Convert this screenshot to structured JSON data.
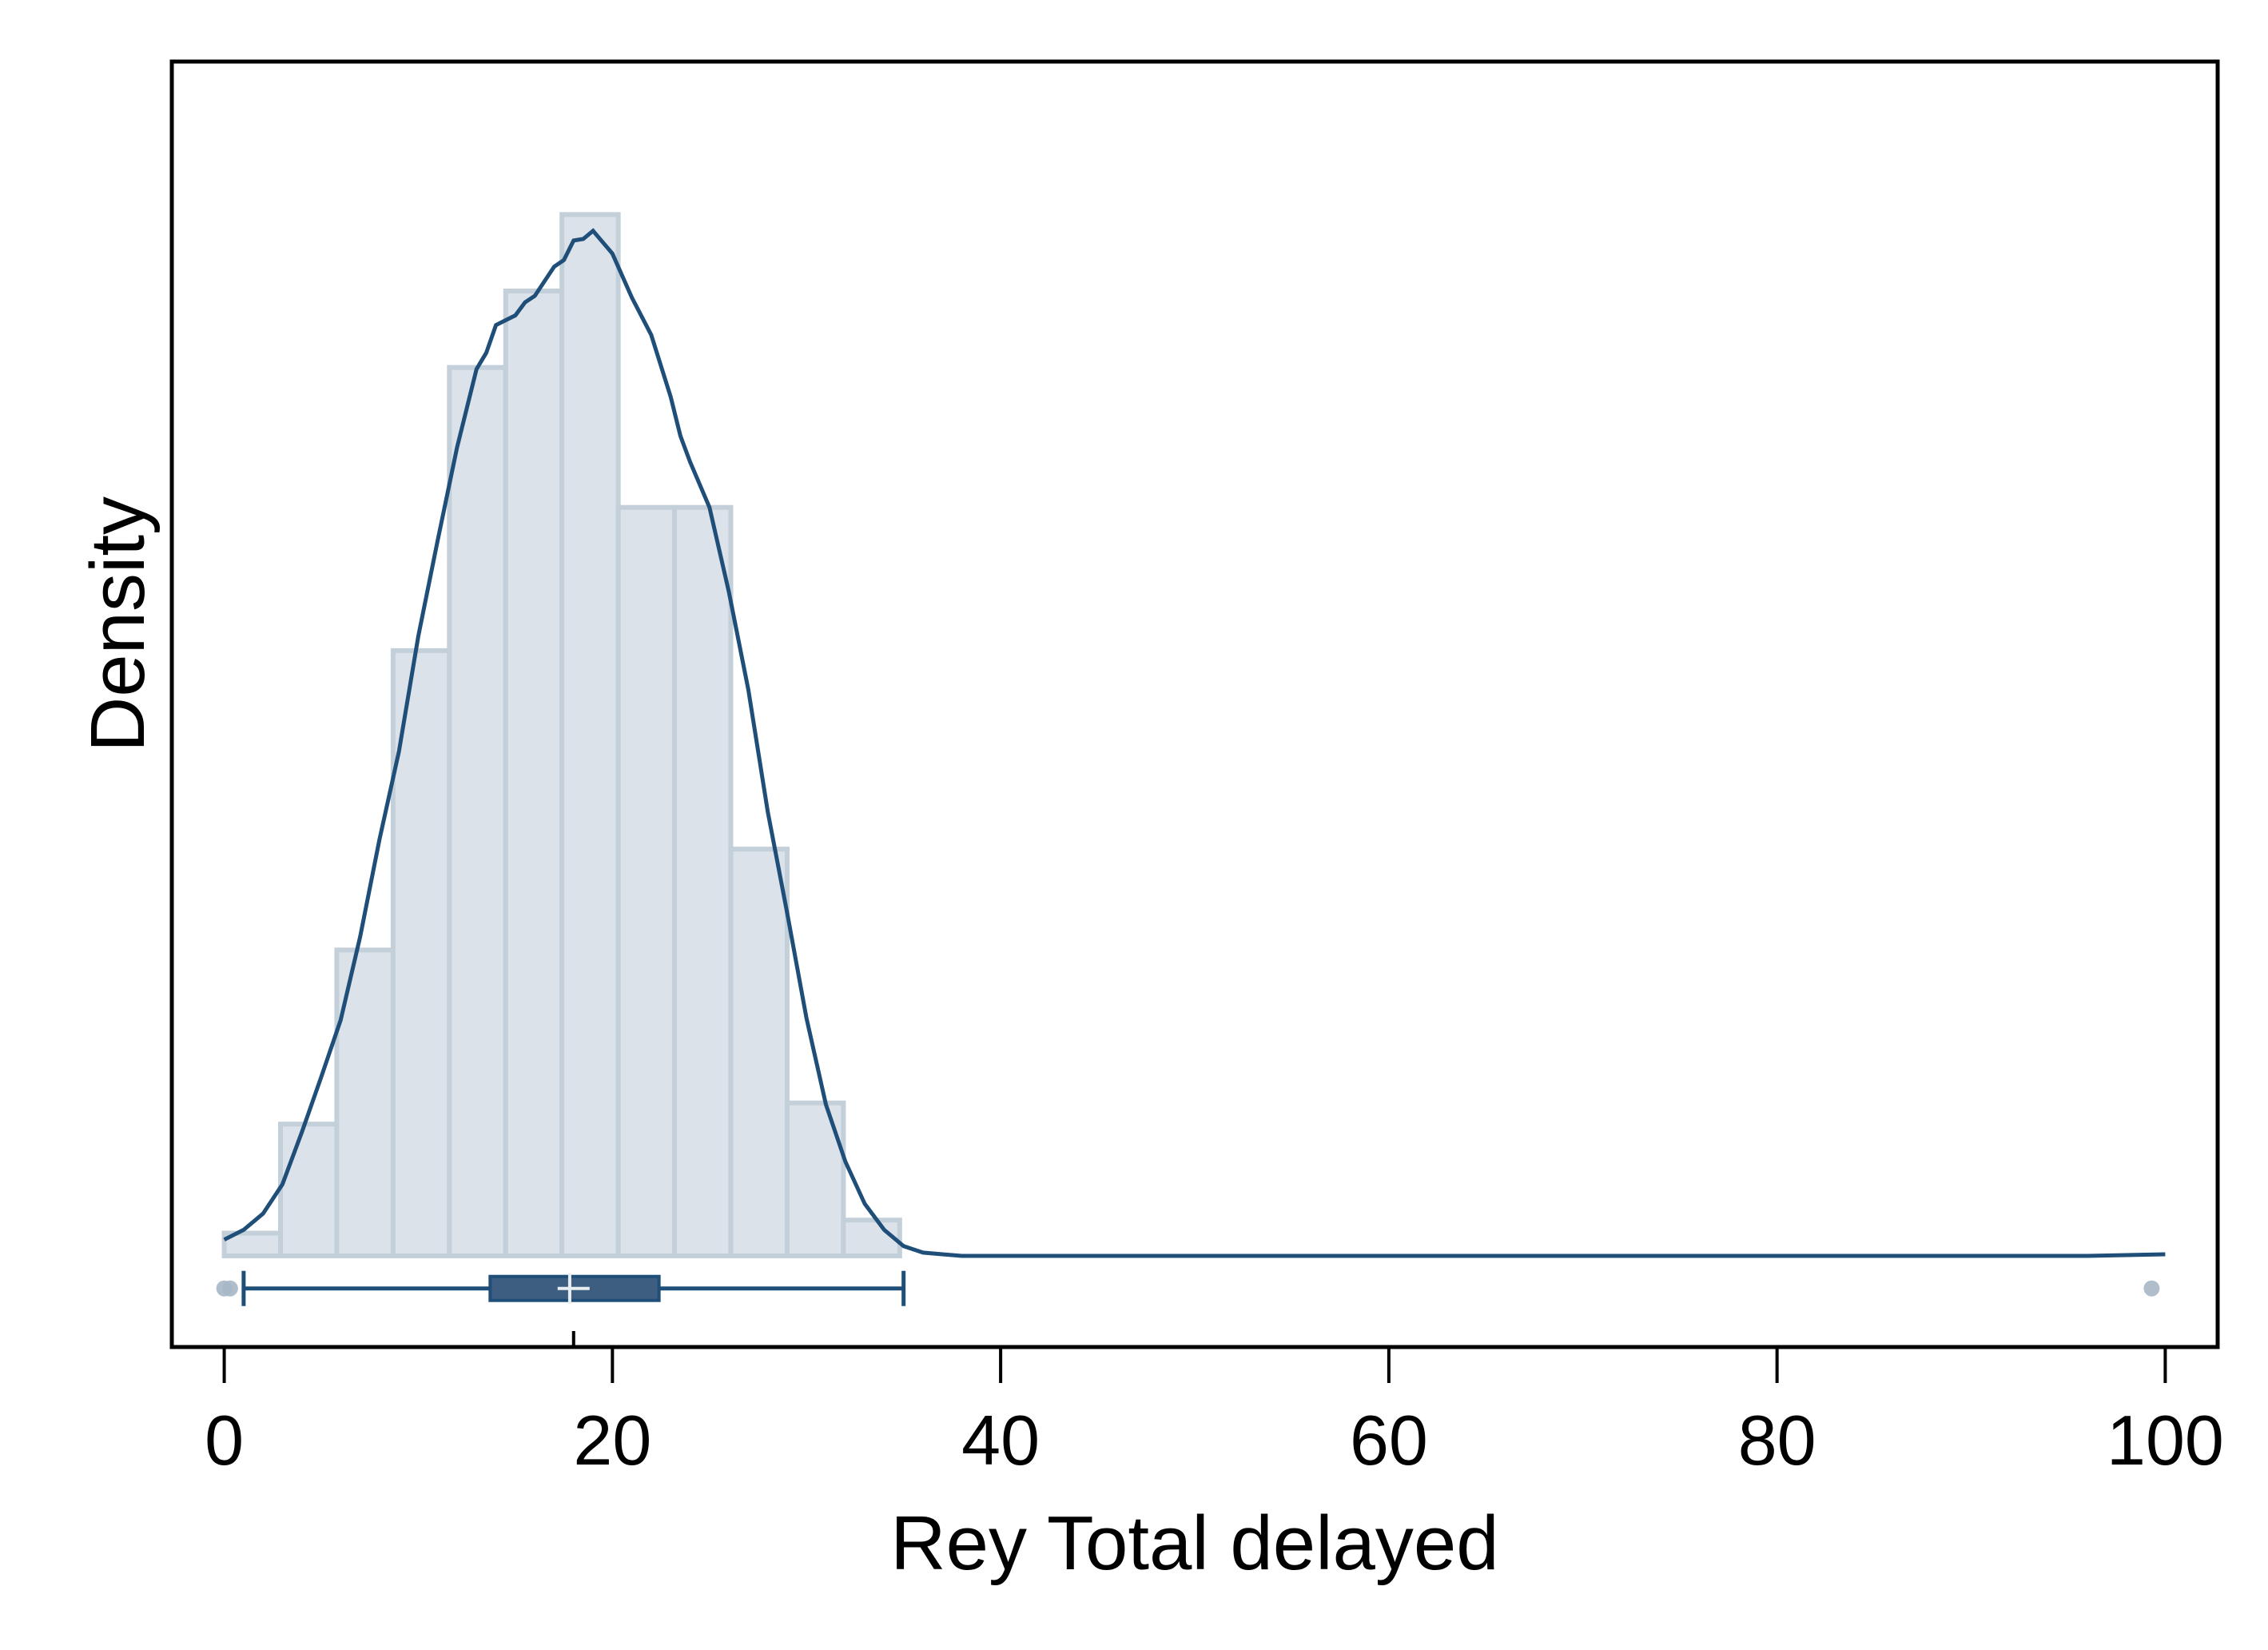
{
  "chart_data": {
    "type": "bar",
    "xlabel": "Rey Total delayed",
    "ylabel": "Density",
    "xlim": [
      -2.7,
      102.7
    ],
    "ylim": [
      -0.0056,
      0.0734
    ],
    "xticks": [
      0,
      20,
      40,
      60,
      80,
      100
    ],
    "xtick_labels": [
      "0",
      "20",
      "40",
      "60",
      "80",
      "100"
    ],
    "y_ticks_labeled": false,
    "grid": false,
    "legend": "none",
    "colors": {
      "background": "#dbe2ea",
      "bar_fill": "#dbe2ea",
      "bar_edge": "#c3cfd9",
      "line": "#1f4e79",
      "box_fill": "#3d5e80",
      "outlier": "#a7b7c7",
      "axis": "#000000"
    },
    "histogram": {
      "bin_edges": [
        0,
        2.9,
        5.8,
        8.7,
        11.6,
        14.5,
        17.4,
        20.3,
        23.2,
        26.1,
        29.0,
        31.9,
        34.8
      ],
      "density": [
        0.0014,
        0.0081,
        0.0188,
        0.0372,
        0.0546,
        0.0593,
        0.064,
        0.046,
        0.046,
        0.025,
        0.0094,
        0.0022
      ]
    },
    "kde": {
      "x": [
        0,
        1,
        2,
        3,
        4,
        5,
        6,
        7,
        8,
        9,
        10,
        11,
        12,
        13,
        13.5,
        14,
        15,
        15.5,
        16,
        17,
        17.5,
        18,
        18.5,
        19,
        20,
        21,
        22,
        23,
        23.5,
        24,
        25,
        26,
        27,
        28,
        29,
        30,
        31,
        32,
        33,
        34,
        35,
        36,
        37,
        38,
        40,
        50,
        60,
        70,
        80,
        90,
        96,
        100
      ],
      "y": [
        0.001,
        0.0016,
        0.0026,
        0.0044,
        0.0076,
        0.011,
        0.0145,
        0.0196,
        0.0256,
        0.031,
        0.0381,
        0.044,
        0.0497,
        0.0545,
        0.0555,
        0.0572,
        0.0578,
        0.0586,
        0.059,
        0.0608,
        0.0612,
        0.0624,
        0.0625,
        0.063,
        0.0616,
        0.0589,
        0.0566,
        0.0528,
        0.0504,
        0.0488,
        0.046,
        0.0408,
        0.0348,
        0.0273,
        0.0211,
        0.0146,
        0.0093,
        0.0058,
        0.0032,
        0.0016,
        0.0006,
        0.0002,
        0.0001,
        0.0,
        0.0,
        0.0,
        0.0,
        0.0,
        0.0,
        0.0,
        0.0,
        0.0001
      ]
    },
    "boxplot": {
      "level": -0.002,
      "whisker_low": 1,
      "q1": 13.7,
      "median": 17.8,
      "mean": 18.0,
      "q3": 22.4,
      "whisker_high": 35,
      "outliers": [
        0,
        0.3,
        99.3
      ]
    }
  }
}
